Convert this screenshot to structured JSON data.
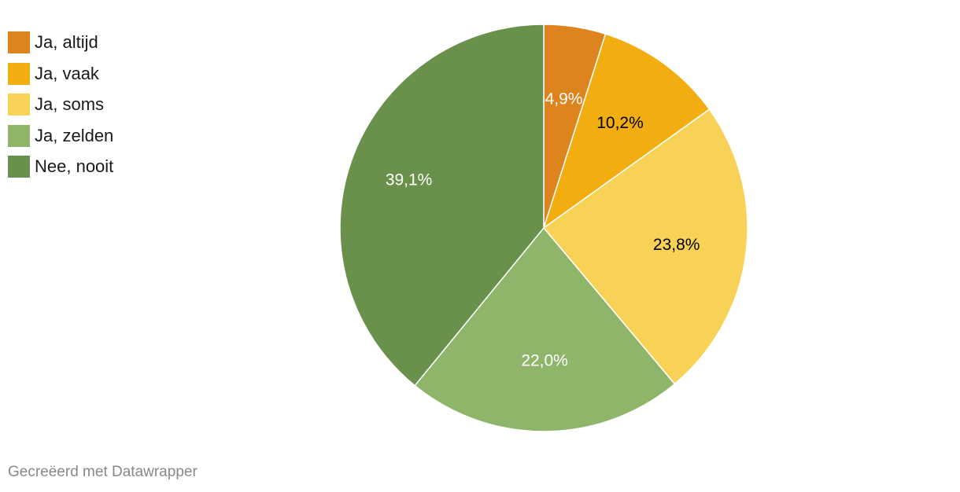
{
  "chart_data": {
    "type": "pie",
    "categories": [
      "Ja, altijd",
      "Ja, vaak",
      "Ja, soms",
      "Ja, zelden",
      "Nee, nooit"
    ],
    "values": [
      4.9,
      10.2,
      23.8,
      22.0,
      39.1
    ],
    "value_labels": [
      "4,9%",
      "10,2%",
      "23,8%",
      "22,0%",
      "39,1%"
    ],
    "colors": [
      "#de841e",
      "#f2ae11",
      "#f8d256",
      "#8fb56b",
      "#6a914b"
    ],
    "label_colors": [
      "#ffffff",
      "#000000",
      "#000000",
      "#ffffff",
      "#ffffff"
    ],
    "legend_position": "top-left",
    "start_angle": "12 o'clock",
    "direction": "clockwise"
  },
  "footer": {
    "credit": "Gecreëerd met Datawrapper"
  }
}
